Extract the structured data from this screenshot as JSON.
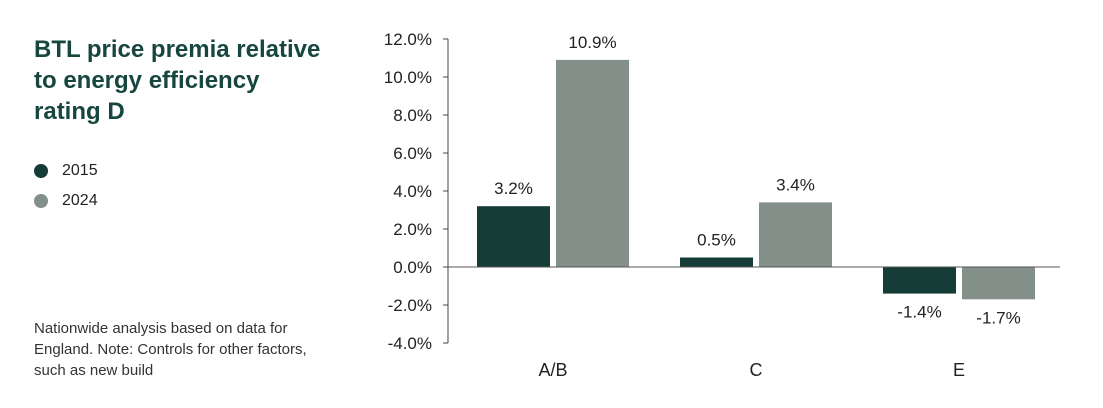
{
  "title": "BTL price premia relative to energy efficiency rating D",
  "note": "Nationwide analysis based on data for England. Note: Controls for other factors, such as new build",
  "legend": [
    {
      "label": "2015",
      "color": "#163c38"
    },
    {
      "label": "2024",
      "color": "#838f89"
    }
  ],
  "chart_data": {
    "type": "bar",
    "title": "BTL price premia relative to energy efficiency rating D",
    "xlabel": "",
    "ylabel": "",
    "categories": [
      "A/B",
      "C",
      "E"
    ],
    "series": [
      {
        "name": "2015",
        "values": [
          3.2,
          0.5,
          -1.4
        ],
        "labels": [
          "3.2%",
          "0.5%",
          "-1.4%"
        ],
        "color": "#163c38"
      },
      {
        "name": "2024",
        "values": [
          10.9,
          3.4,
          -1.7
        ],
        "labels": [
          "10.9%",
          "3.4%",
          "-1.7%"
        ],
        "color": "#838f89"
      }
    ],
    "ylim": [
      -4,
      12
    ],
    "yticks": [
      12,
      10,
      8,
      6,
      4,
      2,
      0,
      -2,
      -4
    ],
    "ytick_labels": [
      "12.0%",
      "10.0%",
      "8.0%",
      "6.0%",
      "4.0%",
      "2.0%",
      "0.0%",
      "-2.0%",
      "-4.0%"
    ],
    "grid": false,
    "legend_position": "left"
  }
}
